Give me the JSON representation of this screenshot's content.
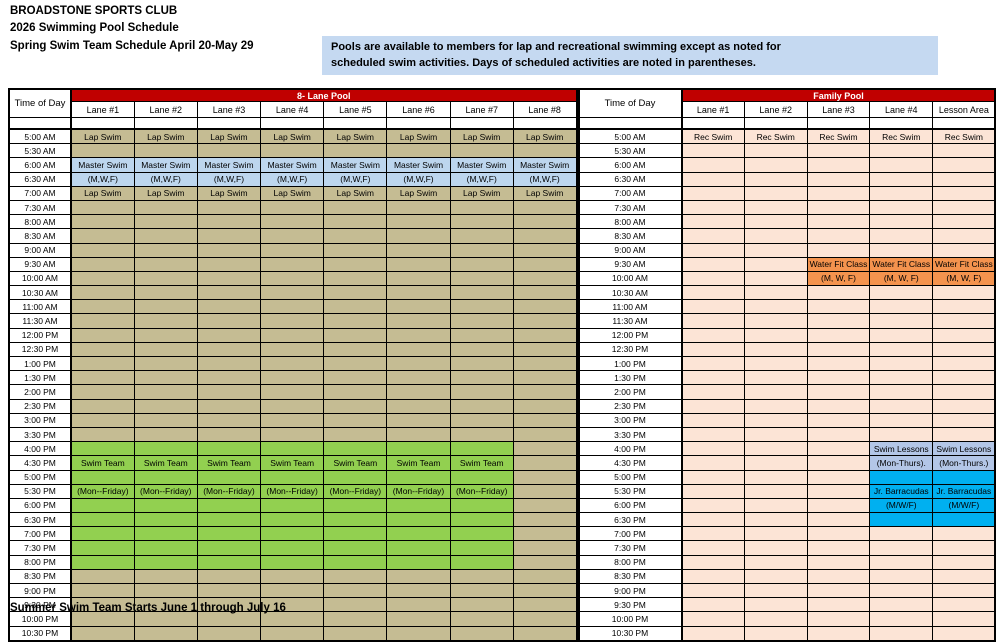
{
  "page": {
    "title_lines": [
      "BROADSTONE SPORTS CLUB",
      "2026 Swimming Pool Schedule",
      "Spring Swim Team Schedule April 20-May 29"
    ],
    "note_lines": [
      "Pools are available to members for lap and recreational swimming except as noted for",
      "scheduled swim activities.  Days of scheduled activities are noted in parentheses."
    ],
    "footer": "Summer Swim Team Starts June 1 through July 16"
  },
  "colors": {
    "header_red": "#C00000",
    "note_bg": "#C5D9F1",
    "tan": "#C5BC93",
    "blue": "#BDD6EE",
    "green": "#92D050",
    "peach": "#FCE4D6",
    "orange": "#F4934E",
    "periwinkle": "#B3C6E7",
    "cyan": "#00B0F0"
  },
  "times": [
    "5:00 AM",
    "5:30 AM",
    "6:00 AM",
    "6:30 AM",
    "7:00 AM",
    "7:30 AM",
    "8:00 AM",
    "8:30 AM",
    "9:00 AM",
    "9:30 AM",
    "10:00 AM",
    "10:30 AM",
    "11:00 AM",
    "11:30 AM",
    "12:00 PM",
    "12:30 PM",
    "1:00 PM",
    "1:30 PM",
    "2:00 PM",
    "2:30 PM",
    "3:00 PM",
    "3:30 PM",
    "4:00 PM",
    "4:30 PM",
    "5:00 PM",
    "5:30 PM",
    "6:00 PM",
    "6:30 PM",
    "7:00 PM",
    "7:30 PM",
    "8:00 PM",
    "8:30 PM",
    "9:00 PM",
    "9:30 PM",
    "10:00 PM",
    "10:30 PM"
  ],
  "pools": [
    {
      "id": "eight-lane-pool",
      "title": "8- Lane Pool",
      "time_header": "Time of Day",
      "columns": [
        "Lane #1",
        "Lane #2",
        "Lane #3",
        "Lane #4",
        "Lane #5",
        "Lane #6",
        "Lane #7",
        "Lane #8"
      ],
      "rows": [
        {
          "all": [
            "Lap Swim",
            "tan"
          ]
        },
        {
          "all": [
            "",
            "tan"
          ]
        },
        {
          "all": [
            "Master Swim",
            "blue"
          ]
        },
        {
          "all": [
            "(M,W,F)",
            "blue"
          ]
        },
        {
          "all": [
            "Lap Swim",
            "tan"
          ]
        },
        {
          "all": [
            "",
            "tan"
          ]
        },
        {
          "all": [
            "",
            "tan"
          ]
        },
        {
          "all": [
            "",
            "tan"
          ]
        },
        {
          "all": [
            "",
            "tan"
          ]
        },
        {
          "all": [
            "",
            "tan"
          ]
        },
        {
          "all": [
            "",
            "tan"
          ]
        },
        {
          "all": [
            "",
            "tan"
          ]
        },
        {
          "all": [
            "",
            "tan"
          ]
        },
        {
          "all": [
            "",
            "tan"
          ]
        },
        {
          "all": [
            "",
            "tan"
          ]
        },
        {
          "all": [
            "",
            "tan"
          ]
        },
        {
          "all": [
            "",
            "tan"
          ]
        },
        {
          "all": [
            "",
            "tan"
          ]
        },
        {
          "all": [
            "",
            "tan"
          ]
        },
        {
          "all": [
            "",
            "tan"
          ]
        },
        {
          "all": [
            "",
            "tan"
          ]
        },
        {
          "all": [
            "",
            "tan"
          ]
        },
        {
          "cells": [
            [
              "",
              "green"
            ],
            [
              "",
              "green"
            ],
            [
              "",
              "green"
            ],
            [
              "",
              "green"
            ],
            [
              "",
              "green"
            ],
            [
              "",
              "green"
            ],
            [
              "",
              "green"
            ],
            [
              "",
              "tan"
            ]
          ]
        },
        {
          "cells": [
            [
              "Swim Team",
              "green"
            ],
            [
              "Swim Team",
              "green"
            ],
            [
              "Swim Team",
              "green"
            ],
            [
              "Swim Team",
              "green"
            ],
            [
              "Swim Team",
              "green"
            ],
            [
              "Swim Team",
              "green"
            ],
            [
              "Swim Team",
              "green"
            ],
            [
              "",
              "tan"
            ]
          ]
        },
        {
          "cells": [
            [
              "",
              "green"
            ],
            [
              "",
              "green"
            ],
            [
              "",
              "green"
            ],
            [
              "",
              "green"
            ],
            [
              "",
              "green"
            ],
            [
              "",
              "green"
            ],
            [
              "",
              "green"
            ],
            [
              "",
              "tan"
            ]
          ]
        },
        {
          "cells": [
            [
              "(Mon--Friday)",
              "green"
            ],
            [
              "(Mon--Friday)",
              "green"
            ],
            [
              "(Mon--Friday)",
              "green"
            ],
            [
              "(Mon--Friday)",
              "green"
            ],
            [
              "(Mon--Friday)",
              "green"
            ],
            [
              "(Mon--Friday)",
              "green"
            ],
            [
              "(Mon--Friday)",
              "green"
            ],
            [
              "",
              "tan"
            ]
          ]
        },
        {
          "cells": [
            [
              "",
              "green"
            ],
            [
              "",
              "green"
            ],
            [
              "",
              "green"
            ],
            [
              "",
              "green"
            ],
            [
              "",
              "green"
            ],
            [
              "",
              "green"
            ],
            [
              "",
              "green"
            ],
            [
              "",
              "tan"
            ]
          ]
        },
        {
          "cells": [
            [
              "",
              "green"
            ],
            [
              "",
              "green"
            ],
            [
              "",
              "green"
            ],
            [
              "",
              "green"
            ],
            [
              "",
              "green"
            ],
            [
              "",
              "green"
            ],
            [
              "",
              "green"
            ],
            [
              "",
              "tan"
            ]
          ]
        },
        {
          "cells": [
            [
              "",
              "green"
            ],
            [
              "",
              "green"
            ],
            [
              "",
              "green"
            ],
            [
              "",
              "green"
            ],
            [
              "",
              "green"
            ],
            [
              "",
              "green"
            ],
            [
              "",
              "green"
            ],
            [
              "",
              "tan"
            ]
          ]
        },
        {
          "cells": [
            [
              "",
              "green"
            ],
            [
              "",
              "green"
            ],
            [
              "",
              "green"
            ],
            [
              "",
              "green"
            ],
            [
              "",
              "green"
            ],
            [
              "",
              "green"
            ],
            [
              "",
              "green"
            ],
            [
              "",
              "tan"
            ]
          ]
        },
        {
          "cells": [
            [
              "",
              "green"
            ],
            [
              "",
              "green"
            ],
            [
              "",
              "green"
            ],
            [
              "",
              "green"
            ],
            [
              "",
              "green"
            ],
            [
              "",
              "green"
            ],
            [
              "",
              "green"
            ],
            [
              "",
              "tan"
            ]
          ]
        },
        {
          "all": [
            "",
            "tan"
          ]
        },
        {
          "all": [
            "",
            "tan"
          ]
        },
        {
          "all": [
            "",
            "tan"
          ]
        },
        {
          "all": [
            "",
            "tan"
          ]
        },
        {
          "all": [
            "",
            "tan"
          ]
        }
      ]
    },
    {
      "id": "family-pool",
      "title": "Family Pool",
      "time_header": "Time of Day",
      "columns": [
        "Lane #1",
        "Lane #2",
        "Lane #3",
        "Lane #4",
        "Lesson Area"
      ],
      "rows": [
        {
          "all": [
            "Rec Swim",
            "peach"
          ]
        },
        {
          "all": [
            "",
            "peach"
          ]
        },
        {
          "all": [
            "",
            "peach"
          ]
        },
        {
          "all": [
            "",
            "peach"
          ]
        },
        {
          "all": [
            "",
            "peach"
          ]
        },
        {
          "all": [
            "",
            "peach"
          ]
        },
        {
          "all": [
            "",
            "peach"
          ]
        },
        {
          "all": [
            "",
            "peach"
          ]
        },
        {
          "all": [
            "",
            "peach"
          ]
        },
        {
          "cells": [
            [
              "",
              "peach"
            ],
            [
              "",
              "peach"
            ],
            [
              "Water Fit Class",
              "orange"
            ],
            [
              "Water Fit Class",
              "orange"
            ],
            [
              "Water Fit Class",
              "orange"
            ]
          ]
        },
        {
          "cells": [
            [
              "",
              "peach"
            ],
            [
              "",
              "peach"
            ],
            [
              "(M, W, F)",
              "orange"
            ],
            [
              "(M, W, F)",
              "orange"
            ],
            [
              "(M,  W, F)",
              "orange"
            ]
          ]
        },
        {
          "all": [
            "",
            "peach"
          ]
        },
        {
          "all": [
            "",
            "peach"
          ]
        },
        {
          "all": [
            "",
            "peach"
          ]
        },
        {
          "all": [
            "",
            "peach"
          ]
        },
        {
          "all": [
            "",
            "peach"
          ]
        },
        {
          "all": [
            "",
            "peach"
          ]
        },
        {
          "all": [
            "",
            "peach"
          ]
        },
        {
          "all": [
            "",
            "peach"
          ]
        },
        {
          "all": [
            "",
            "peach"
          ]
        },
        {
          "all": [
            "",
            "peach"
          ]
        },
        {
          "all": [
            "",
            "peach"
          ]
        },
        {
          "cells": [
            [
              "",
              "peach"
            ],
            [
              "",
              "peach"
            ],
            [
              "",
              "peach"
            ],
            [
              "Swim Lessons",
              "periwinkle"
            ],
            [
              "Swim Lessons",
              "periwinkle"
            ]
          ]
        },
        {
          "cells": [
            [
              "",
              "peach"
            ],
            [
              "",
              "peach"
            ],
            [
              "",
              "peach"
            ],
            [
              "(Mon-Thurs).",
              "periwinkle"
            ],
            [
              "(Mon-Thurs.)",
              "periwinkle"
            ]
          ]
        },
        {
          "cells": [
            [
              "",
              "peach"
            ],
            [
              "",
              "peach"
            ],
            [
              "",
              "peach"
            ],
            [
              "",
              "cyan"
            ],
            [
              "",
              "cyan"
            ]
          ]
        },
        {
          "cells": [
            [
              "",
              "peach"
            ],
            [
              "",
              "peach"
            ],
            [
              "",
              "peach"
            ],
            [
              "Jr. Barracudas",
              "cyan"
            ],
            [
              "Jr. Barracudas",
              "cyan"
            ]
          ]
        },
        {
          "cells": [
            [
              "",
              "peach"
            ],
            [
              "",
              "peach"
            ],
            [
              "",
              "peach"
            ],
            [
              "(M/W/F)",
              "cyan"
            ],
            [
              "(M/W/F)",
              "cyan"
            ]
          ]
        },
        {
          "cells": [
            [
              "",
              "peach"
            ],
            [
              "",
              "peach"
            ],
            [
              "",
              "peach"
            ],
            [
              "",
              "cyan"
            ],
            [
              "",
              "cyan"
            ]
          ]
        },
        {
          "all": [
            "",
            "peach"
          ]
        },
        {
          "all": [
            "",
            "peach"
          ]
        },
        {
          "all": [
            "",
            "peach"
          ]
        },
        {
          "all": [
            "",
            "peach"
          ]
        },
        {
          "all": [
            "",
            "peach"
          ]
        },
        {
          "all": [
            "",
            "peach"
          ]
        },
        {
          "all": [
            "",
            "peach"
          ]
        },
        {
          "all": [
            "",
            "peach"
          ]
        }
      ]
    }
  ]
}
